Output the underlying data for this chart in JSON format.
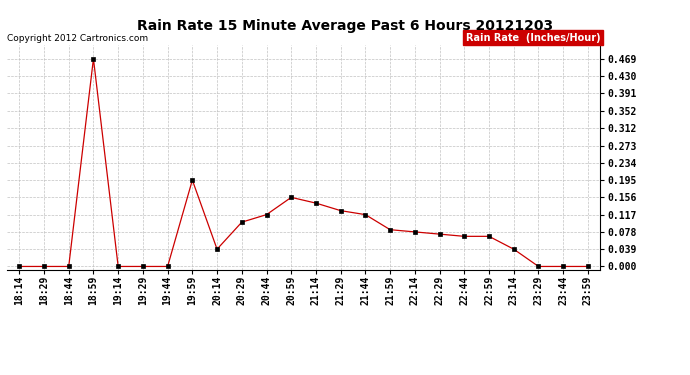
{
  "title": "Rain Rate 15 Minute Average Past 6 Hours 20121203",
  "copyright_text": "Copyright 2012 Cartronics.com",
  "legend_label": "Rain Rate  (Inches/Hour)",
  "x_labels": [
    "18:14",
    "18:29",
    "18:44",
    "18:59",
    "19:14",
    "19:29",
    "19:44",
    "19:59",
    "20:14",
    "20:29",
    "20:44",
    "20:59",
    "21:14",
    "21:29",
    "21:44",
    "21:59",
    "22:14",
    "22:29",
    "22:44",
    "22:59",
    "23:14",
    "23:29",
    "23:44",
    "23:59"
  ],
  "y_values": [
    0.0,
    0.0,
    0.0,
    0.469,
    0.0,
    0.0,
    0.0,
    0.195,
    0.039,
    0.1,
    0.117,
    0.156,
    0.143,
    0.126,
    0.117,
    0.083,
    0.078,
    0.073,
    0.068,
    0.068,
    0.039,
    0.0,
    0.0,
    0.0
  ],
  "yticks": [
    0.0,
    0.039,
    0.078,
    0.117,
    0.156,
    0.195,
    0.234,
    0.273,
    0.312,
    0.352,
    0.391,
    0.43,
    0.469
  ],
  "line_color": "#cc0000",
  "marker_color": "#000000",
  "grid_color": "#bbbbbb",
  "background_color": "#ffffff",
  "legend_bg": "#cc0000",
  "legend_fg": "#ffffff",
  "title_fontsize": 10,
  "copyright_fontsize": 6.5,
  "tick_fontsize": 7,
  "legend_fontsize": 7,
  "ylim": [
    -0.008,
    0.5
  ]
}
